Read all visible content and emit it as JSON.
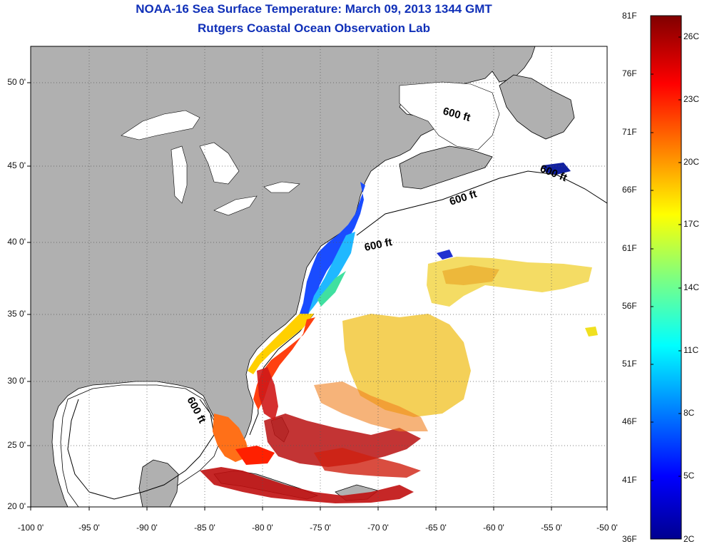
{
  "header": {
    "title": "NOAA-16 Sea Surface Temperature:  March 09, 2013 1344 GMT",
    "subtitle": "Rutgers Coastal Ocean Observation Lab"
  },
  "map": {
    "lon_labels": [
      "-100 0'",
      "-95 0'",
      "-90 0'",
      "-85 0'",
      "-80 0'",
      "-75 0'",
      "-70 0'",
      "-65 0'",
      "-60 0'",
      "-55 0'",
      "-50 0'"
    ],
    "lat_labels": [
      "20 0'",
      "25 0'",
      "30 0'",
      "35 0'",
      "40 0'",
      "45 0'",
      "50 0'"
    ],
    "contour_labels": [
      "600 ft",
      "600 ft",
      "600 ft",
      "600 ft",
      "600 ft"
    ],
    "land_color": "#b0b0b0",
    "water_color": "#ffffff"
  },
  "colorbar": {
    "fahrenheit_labels": [
      "81F",
      "76F",
      "71F",
      "66F",
      "61F",
      "56F",
      "51F",
      "46F",
      "41F",
      "36F"
    ],
    "celsius_labels": [
      "26C",
      "23C",
      "20C",
      "17C",
      "14C",
      "11C",
      "8C",
      "5C",
      "2C"
    ]
  }
}
